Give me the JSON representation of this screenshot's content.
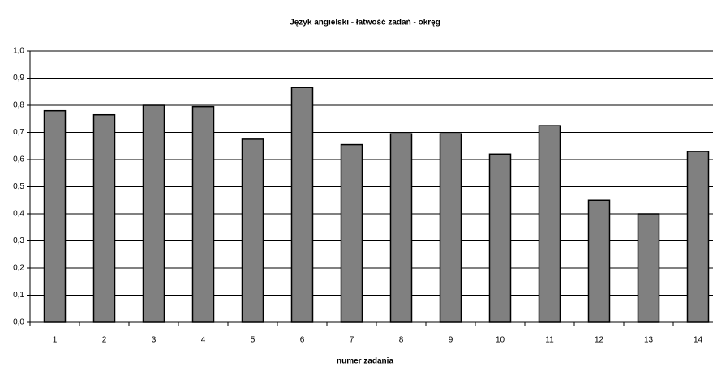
{
  "chart_data": {
    "type": "bar",
    "title": "Język angielski - łatwość zadań - okręg",
    "x_label": "numer zadania",
    "categories": [
      "1",
      "2",
      "3",
      "4",
      "5",
      "6",
      "7",
      "8",
      "9",
      "10",
      "11",
      "12",
      "13",
      "14"
    ],
    "values": [
      0.78,
      0.765,
      0.8,
      0.795,
      0.675,
      0.865,
      0.655,
      0.695,
      0.695,
      0.62,
      0.725,
      0.45,
      0.4,
      0.63
    ],
    "color": "#808080",
    "ylim": [
      0,
      1
    ],
    "yticks": [
      {
        "value": 0,
        "label": "0,0"
      },
      {
        "value": 0.1,
        "label": "0,1"
      },
      {
        "value": 0.2,
        "label": "0,2"
      },
      {
        "value": 0.3,
        "label": "0,3"
      },
      {
        "value": 0.4,
        "label": "0,4"
      },
      {
        "value": 0.5,
        "label": "0,5"
      },
      {
        "value": 0.6,
        "label": "0,6"
      },
      {
        "value": 0.7,
        "label": "0,7"
      },
      {
        "value": 0.8,
        "label": "0,8"
      },
      {
        "value": 0.9,
        "label": "0,9"
      },
      {
        "value": 1,
        "label": "1,0"
      }
    ],
    "grid": true
  }
}
